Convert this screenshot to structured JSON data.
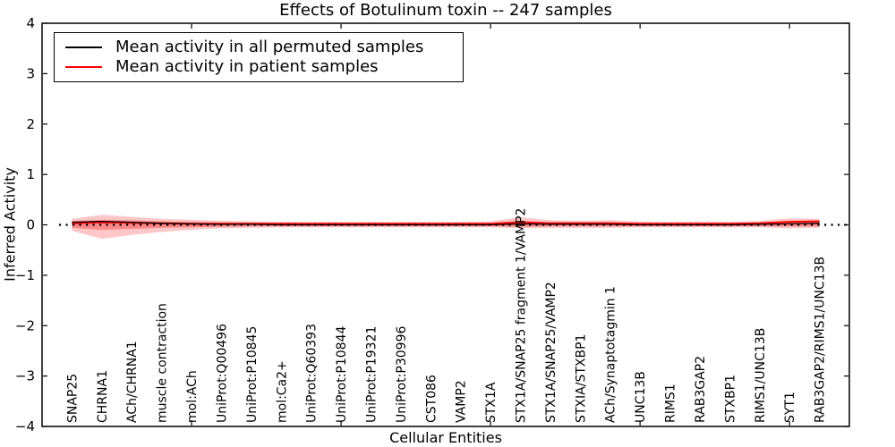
{
  "figure": {
    "title": "Effects of Botulinum toxin -- 247 samples",
    "xlabel": "Cellular Entities",
    "ylabel": "Inferred Activity"
  },
  "legend": {
    "items": [
      {
        "label": "Mean activity in all permuted samples",
        "color": "#000000"
      },
      {
        "label": "Mean activity in patient samples",
        "color": "#ff0000"
      }
    ]
  },
  "chart_data": {
    "type": "line",
    "title": "Effects of Botulinum toxin -- 247 samples",
    "xlabel": "Cellular Entities",
    "ylabel": "Inferred Activity",
    "xlim": [
      0,
      27
    ],
    "ylim": [
      -4,
      4
    ],
    "yticks": [
      -4,
      -3,
      -2,
      -1,
      0,
      1,
      2,
      3,
      4
    ],
    "xticks": [
      5,
      10,
      15,
      20,
      25
    ],
    "grid": false,
    "legend_position": "upper left",
    "frame_color": "#000000",
    "categories": [
      "SNAP25",
      "CHRNA1",
      "ACh/CHRNA1",
      "muscle contraction",
      "mol:ACh",
      "UniProt:Q00496",
      "UniProt:P10845",
      "mol:Ca2+",
      "UniProt:Q60393",
      "UniProt:P10844",
      "UniProt:P19321",
      "UniProt:P30996",
      "CST086",
      "VAMP2",
      "STX1A",
      "STX1A/SNAP25 fragment 1/VAMP2",
      "STX1A/SNAP25/VAMP2",
      "STXIA/STXBP1",
      "ACh/Synaptotagmin 1",
      "UNC13B",
      "RIMS1",
      "RAB3GAP2",
      "STXBP1",
      "RIMS1/UNC13B",
      "SYT1",
      "RAB3GAP2/RIMS1/UNC13B"
    ],
    "series": [
      {
        "name": "Mean activity in all permuted samples",
        "color": "#000000",
        "style": "solid",
        "values": [
          0.05,
          0.07,
          0.05,
          0.03,
          0.02,
          0.01,
          0.01,
          0.0,
          0.0,
          0.0,
          0.0,
          0.0,
          0.0,
          0.0,
          0.0,
          0.02,
          0.01,
          0.01,
          0.01,
          0.0,
          0.0,
          0.0,
          0.0,
          0.01,
          0.02,
          0.03
        ]
      },
      {
        "name": "Mean activity in patient samples",
        "color": "#ff0000",
        "style": "solid",
        "values": [
          0.03,
          0.05,
          0.04,
          0.03,
          0.02,
          0.02,
          0.02,
          0.02,
          0.02,
          0.02,
          0.02,
          0.02,
          0.02,
          0.02,
          0.02,
          0.05,
          0.03,
          0.03,
          0.03,
          0.02,
          0.02,
          0.02,
          0.02,
          0.03,
          0.06,
          0.07
        ]
      }
    ],
    "bands": [
      {
        "name": "patient-activity-spread-outer",
        "color": "#ff0000",
        "alpha": 0.22,
        "upper": [
          0.12,
          0.2,
          0.16,
          0.12,
          0.1,
          0.08,
          0.07,
          0.06,
          0.06,
          0.06,
          0.06,
          0.06,
          0.06,
          0.06,
          0.07,
          0.15,
          0.09,
          0.08,
          0.09,
          0.07,
          0.06,
          0.07,
          0.06,
          0.08,
          0.13,
          0.12
        ],
        "lower": [
          -0.12,
          -0.28,
          -0.2,
          -0.14,
          -0.1,
          -0.07,
          -0.06,
          -0.05,
          -0.05,
          -0.05,
          -0.05,
          -0.05,
          -0.05,
          -0.05,
          -0.05,
          -0.07,
          -0.06,
          -0.06,
          -0.06,
          -0.05,
          -0.05,
          -0.05,
          -0.05,
          -0.05,
          -0.07,
          -0.06
        ]
      },
      {
        "name": "patient-activity-spread-inner",
        "color": "#ff0000",
        "alpha": 0.32,
        "upper": [
          0.08,
          0.1,
          0.09,
          0.07,
          0.06,
          0.05,
          0.05,
          0.04,
          0.04,
          0.04,
          0.04,
          0.04,
          0.04,
          0.04,
          0.04,
          0.08,
          0.05,
          0.05,
          0.05,
          0.04,
          0.04,
          0.04,
          0.04,
          0.04,
          0.06,
          0.06
        ],
        "lower": [
          -0.06,
          -0.1,
          -0.08,
          -0.06,
          -0.05,
          -0.04,
          -0.03,
          -0.03,
          -0.03,
          -0.03,
          -0.03,
          -0.03,
          -0.03,
          -0.03,
          -0.03,
          -0.04,
          -0.03,
          -0.03,
          -0.03,
          -0.03,
          -0.03,
          -0.03,
          -0.03,
          -0.03,
          -0.03,
          -0.03
        ]
      }
    ],
    "zero_line": {
      "y": 0,
      "style": "dotted",
      "color": "#000000"
    }
  }
}
